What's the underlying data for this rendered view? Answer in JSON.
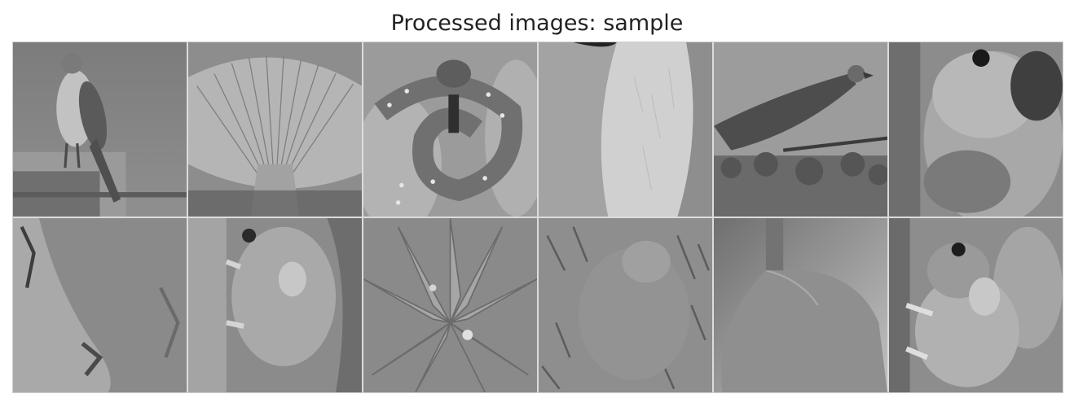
{
  "title": "Processed images: sample",
  "grid": {
    "rows": 2,
    "cols": 6
  },
  "images": [
    {
      "subject": "hawk-perched-on-post"
    },
    {
      "subject": "mushroom-gills"
    },
    {
      "subject": "coiled-snake-on-hand"
    },
    {
      "subject": "white-fur-held-in-hand"
    },
    {
      "subject": "eagle-on-branch"
    },
    {
      "subject": "hamster-closeup"
    },
    {
      "subject": "rock-texture-closeup"
    },
    {
      "subject": "mouse-climbing-wood"
    },
    {
      "subject": "succulent-plant"
    },
    {
      "subject": "rodent-in-grass"
    },
    {
      "subject": "rat-back-and-tail"
    },
    {
      "subject": "mouse-on-stem"
    }
  ]
}
